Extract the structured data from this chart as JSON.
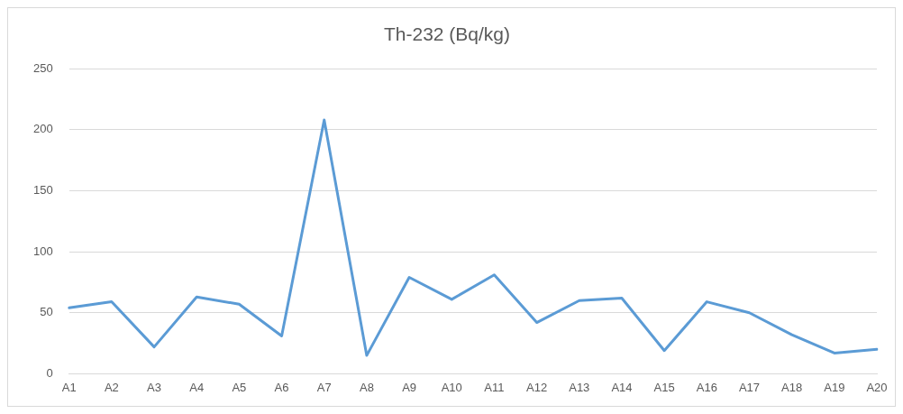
{
  "chart_data": {
    "type": "line",
    "title": "Th-232 (Bq/kg)",
    "categories": [
      "A1",
      "A2",
      "A3",
      "A4",
      "A5",
      "A6",
      "A7",
      "A8",
      "A9",
      "A10",
      "A11",
      "A12",
      "A13",
      "A14",
      "A15",
      "A16",
      "A17",
      "A18",
      "A19",
      "A20"
    ],
    "series": [
      {
        "color": "#5b9bd5",
        "values": [
          54,
          59,
          22,
          63,
          57,
          31,
          208,
          15,
          79,
          61,
          81,
          42,
          60,
          62,
          19,
          59,
          50,
          32,
          17,
          20
        ]
      }
    ],
    "ylim": [
      0,
      250
    ],
    "yticks": [
      0,
      50,
      100,
      150,
      200,
      250
    ],
    "grid": "y",
    "legend": false,
    "marker": "none",
    "line_style": "solid"
  }
}
